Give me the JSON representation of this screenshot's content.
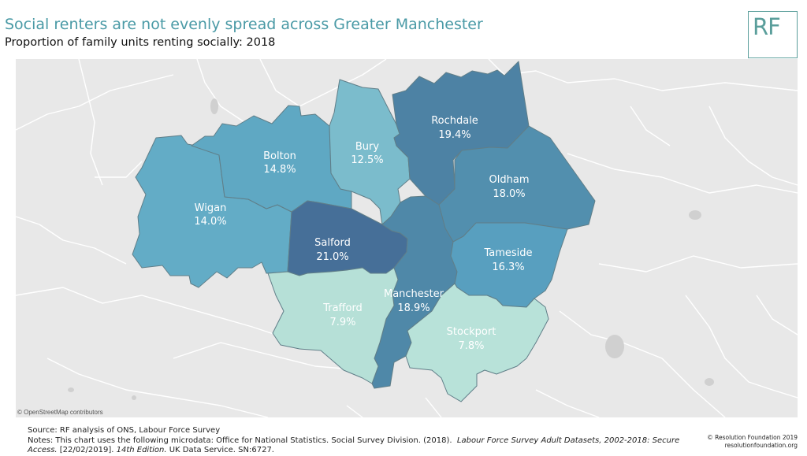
{
  "header": {
    "title": "Social renters are not evenly spread across Greater Manchester",
    "subtitle": "Proportion of family units renting socially: 2018",
    "logo_text": "RF"
  },
  "map": {
    "attribution": "© OpenStreetMap contributors",
    "regions": [
      {
        "name": "Rochdale",
        "value": "19.4%",
        "color": "#4d82a4"
      },
      {
        "name": "Bury",
        "value": "12.5%",
        "color": "#7bbccc"
      },
      {
        "name": "Bolton",
        "value": "14.8%",
        "color": "#5fa8c3"
      },
      {
        "name": "Wigan",
        "value": "14.0%",
        "color": "#63acc6"
      },
      {
        "name": "Oldham",
        "value": "18.0%",
        "color": "#528fae"
      },
      {
        "name": "Salford",
        "value": "21.0%",
        "color": "#466f98"
      },
      {
        "name": "Tameside",
        "value": "16.3%",
        "color": "#589fbf"
      },
      {
        "name": "Manchester",
        "value": "18.9%",
        "color": "#4f88a8"
      },
      {
        "name": "Trafford",
        "value": "7.9%",
        "color": "#b6e0d7"
      },
      {
        "name": "Stockport",
        "value": "7.8%",
        "color": "#b8e2d9"
      }
    ]
  },
  "footer": {
    "source": "Source: RF analysis of ONS, Labour Force Survey",
    "notes_prefix": "Notes: This chart uses the following microdata: Office for National Statistics. Social Survey Division. (2018).",
    "notes_title": "Labour Force Survey Adult Datasets, 2002-2018: Secure Access.",
    "notes_mid": "[22/02/2019].",
    "notes_edition": "14th Edition.",
    "notes_suffix": "UK Data Service. SN:6727.",
    "copyright": "© Resolution Foundation 2019",
    "website": "resolutionfoundation.org"
  }
}
